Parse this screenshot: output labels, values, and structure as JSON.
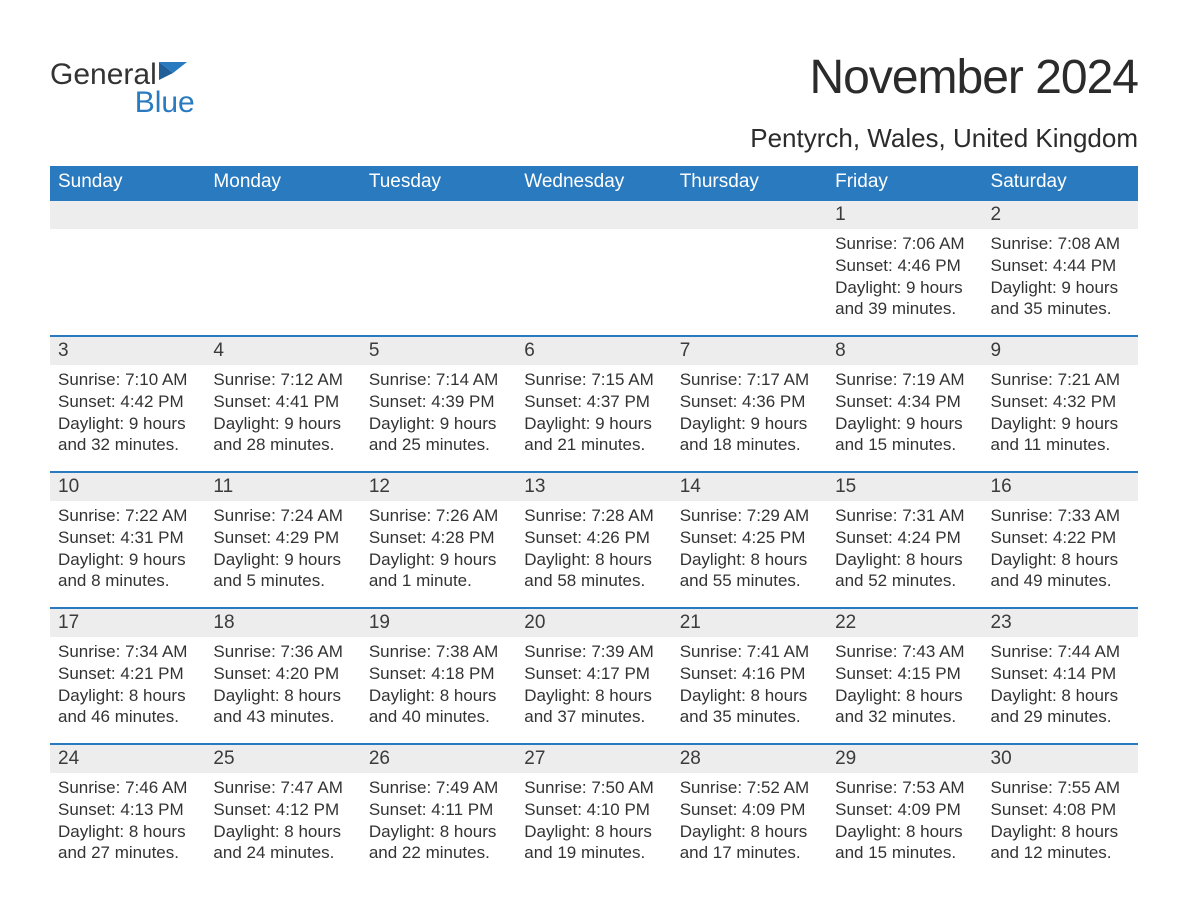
{
  "logo": {
    "text_general": "General",
    "text_blue": "Blue",
    "icon_color": "#2a7ac0"
  },
  "title": "November 2024",
  "location": "Pentyrch, Wales, United Kingdom",
  "colors": {
    "header_bg": "#2a7ac0",
    "header_text": "#ffffff",
    "daynum_bg": "#ededed",
    "daynum_border": "#2a7ac0",
    "body_text": "#333333",
    "page_bg": "#ffffff"
  },
  "typography": {
    "month_title_fontsize": 48,
    "location_fontsize": 26,
    "weekday_fontsize": 19,
    "daynum_fontsize": 19,
    "body_fontsize": 17
  },
  "weekdays": [
    "Sunday",
    "Monday",
    "Tuesday",
    "Wednesday",
    "Thursday",
    "Friday",
    "Saturday"
  ],
  "weeks": [
    [
      null,
      null,
      null,
      null,
      null,
      {
        "num": "1",
        "sunrise": "Sunrise: 7:06 AM",
        "sunset": "Sunset: 4:46 PM",
        "daylight": "Daylight: 9 hours and 39 minutes."
      },
      {
        "num": "2",
        "sunrise": "Sunrise: 7:08 AM",
        "sunset": "Sunset: 4:44 PM",
        "daylight": "Daylight: 9 hours and 35 minutes."
      }
    ],
    [
      {
        "num": "3",
        "sunrise": "Sunrise: 7:10 AM",
        "sunset": "Sunset: 4:42 PM",
        "daylight": "Daylight: 9 hours and 32 minutes."
      },
      {
        "num": "4",
        "sunrise": "Sunrise: 7:12 AM",
        "sunset": "Sunset: 4:41 PM",
        "daylight": "Daylight: 9 hours and 28 minutes."
      },
      {
        "num": "5",
        "sunrise": "Sunrise: 7:14 AM",
        "sunset": "Sunset: 4:39 PM",
        "daylight": "Daylight: 9 hours and 25 minutes."
      },
      {
        "num": "6",
        "sunrise": "Sunrise: 7:15 AM",
        "sunset": "Sunset: 4:37 PM",
        "daylight": "Daylight: 9 hours and 21 minutes."
      },
      {
        "num": "7",
        "sunrise": "Sunrise: 7:17 AM",
        "sunset": "Sunset: 4:36 PM",
        "daylight": "Daylight: 9 hours and 18 minutes."
      },
      {
        "num": "8",
        "sunrise": "Sunrise: 7:19 AM",
        "sunset": "Sunset: 4:34 PM",
        "daylight": "Daylight: 9 hours and 15 minutes."
      },
      {
        "num": "9",
        "sunrise": "Sunrise: 7:21 AM",
        "sunset": "Sunset: 4:32 PM",
        "daylight": "Daylight: 9 hours and 11 minutes."
      }
    ],
    [
      {
        "num": "10",
        "sunrise": "Sunrise: 7:22 AM",
        "sunset": "Sunset: 4:31 PM",
        "daylight": "Daylight: 9 hours and 8 minutes."
      },
      {
        "num": "11",
        "sunrise": "Sunrise: 7:24 AM",
        "sunset": "Sunset: 4:29 PM",
        "daylight": "Daylight: 9 hours and 5 minutes."
      },
      {
        "num": "12",
        "sunrise": "Sunrise: 7:26 AM",
        "sunset": "Sunset: 4:28 PM",
        "daylight": "Daylight: 9 hours and 1 minute."
      },
      {
        "num": "13",
        "sunrise": "Sunrise: 7:28 AM",
        "sunset": "Sunset: 4:26 PM",
        "daylight": "Daylight: 8 hours and 58 minutes."
      },
      {
        "num": "14",
        "sunrise": "Sunrise: 7:29 AM",
        "sunset": "Sunset: 4:25 PM",
        "daylight": "Daylight: 8 hours and 55 minutes."
      },
      {
        "num": "15",
        "sunrise": "Sunrise: 7:31 AM",
        "sunset": "Sunset: 4:24 PM",
        "daylight": "Daylight: 8 hours and 52 minutes."
      },
      {
        "num": "16",
        "sunrise": "Sunrise: 7:33 AM",
        "sunset": "Sunset: 4:22 PM",
        "daylight": "Daylight: 8 hours and 49 minutes."
      }
    ],
    [
      {
        "num": "17",
        "sunrise": "Sunrise: 7:34 AM",
        "sunset": "Sunset: 4:21 PM",
        "daylight": "Daylight: 8 hours and 46 minutes."
      },
      {
        "num": "18",
        "sunrise": "Sunrise: 7:36 AM",
        "sunset": "Sunset: 4:20 PM",
        "daylight": "Daylight: 8 hours and 43 minutes."
      },
      {
        "num": "19",
        "sunrise": "Sunrise: 7:38 AM",
        "sunset": "Sunset: 4:18 PM",
        "daylight": "Daylight: 8 hours and 40 minutes."
      },
      {
        "num": "20",
        "sunrise": "Sunrise: 7:39 AM",
        "sunset": "Sunset: 4:17 PM",
        "daylight": "Daylight: 8 hours and 37 minutes."
      },
      {
        "num": "21",
        "sunrise": "Sunrise: 7:41 AM",
        "sunset": "Sunset: 4:16 PM",
        "daylight": "Daylight: 8 hours and 35 minutes."
      },
      {
        "num": "22",
        "sunrise": "Sunrise: 7:43 AM",
        "sunset": "Sunset: 4:15 PM",
        "daylight": "Daylight: 8 hours and 32 minutes."
      },
      {
        "num": "23",
        "sunrise": "Sunrise: 7:44 AM",
        "sunset": "Sunset: 4:14 PM",
        "daylight": "Daylight: 8 hours and 29 minutes."
      }
    ],
    [
      {
        "num": "24",
        "sunrise": "Sunrise: 7:46 AM",
        "sunset": "Sunset: 4:13 PM",
        "daylight": "Daylight: 8 hours and 27 minutes."
      },
      {
        "num": "25",
        "sunrise": "Sunrise: 7:47 AM",
        "sunset": "Sunset: 4:12 PM",
        "daylight": "Daylight: 8 hours and 24 minutes."
      },
      {
        "num": "26",
        "sunrise": "Sunrise: 7:49 AM",
        "sunset": "Sunset: 4:11 PM",
        "daylight": "Daylight: 8 hours and 22 minutes."
      },
      {
        "num": "27",
        "sunrise": "Sunrise: 7:50 AM",
        "sunset": "Sunset: 4:10 PM",
        "daylight": "Daylight: 8 hours and 19 minutes."
      },
      {
        "num": "28",
        "sunrise": "Sunrise: 7:52 AM",
        "sunset": "Sunset: 4:09 PM",
        "daylight": "Daylight: 8 hours and 17 minutes."
      },
      {
        "num": "29",
        "sunrise": "Sunrise: 7:53 AM",
        "sunset": "Sunset: 4:09 PM",
        "daylight": "Daylight: 8 hours and 15 minutes."
      },
      {
        "num": "30",
        "sunrise": "Sunrise: 7:55 AM",
        "sunset": "Sunset: 4:08 PM",
        "daylight": "Daylight: 8 hours and 12 minutes."
      }
    ]
  ]
}
